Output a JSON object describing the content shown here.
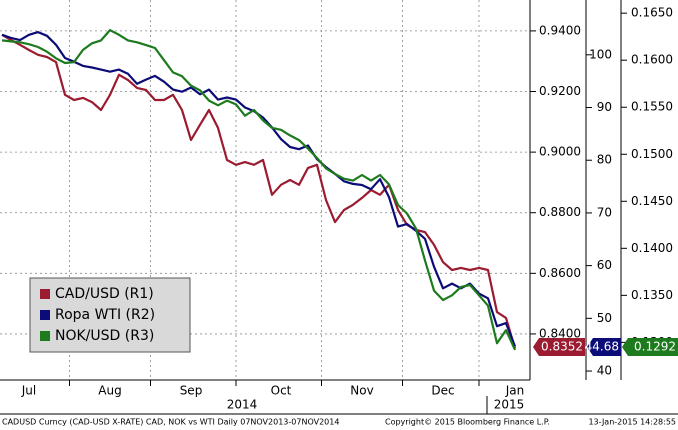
{
  "chart_data": {
    "type": "line",
    "categories": [
      null,
      null,
      null,
      "Jul",
      null,
      null,
      null,
      null,
      null,
      null,
      null,
      null,
      "Aug",
      null,
      null,
      null,
      null,
      null,
      null,
      null,
      null,
      "Sep",
      null,
      null,
      null,
      null,
      null,
      null,
      null,
      null,
      null,
      "Oct",
      null,
      null,
      null,
      null,
      null,
      null,
      null,
      null,
      "Nov",
      null,
      null,
      null,
      null,
      null,
      null,
      null,
      null,
      "Dec",
      null,
      null,
      null,
      null,
      null,
      null,
      null,
      "Jan"
    ],
    "years": [
      "2014",
      "2015"
    ],
    "series": [
      {
        "name": "CAD/USD (R1)",
        "color": "#9b1b30",
        "axis": "y",
        "values": [
          0.9387,
          0.937,
          0.9354,
          0.9337,
          0.9321,
          0.9314,
          0.9297,
          0.9189,
          0.9172,
          0.9179,
          0.9165,
          0.9139,
          0.9189,
          0.9255,
          0.9238,
          0.9212,
          0.9205,
          0.9172,
          0.9172,
          0.9189,
          0.9139,
          0.904,
          0.909,
          0.9139,
          0.908,
          0.8974,
          0.8958,
          0.8967,
          0.8958,
          0.8974,
          0.8859,
          0.8892,
          0.8908,
          0.8892,
          0.8948,
          0.8958,
          0.8842,
          0.8769,
          0.8809,
          0.8826,
          0.8849,
          0.8875,
          0.8859,
          0.8892,
          0.8809,
          0.876,
          0.8743,
          0.8736,
          0.8694,
          0.8637,
          0.8611,
          0.8618,
          0.8611,
          0.8618,
          0.8611,
          0.8472,
          0.8453,
          0.8352
        ]
      },
      {
        "name": "Ropa WTI (R2)",
        "color": "#0c0c78",
        "axis": "y2",
        "values": [
          103.8,
          103.2,
          102.8,
          103.8,
          104.3,
          103.6,
          101.9,
          99.4,
          98.7,
          97.9,
          97.6,
          97.2,
          96.8,
          97.2,
          96.4,
          94.5,
          95.3,
          96.0,
          94.9,
          93.4,
          93.0,
          93.8,
          92.5,
          93.4,
          91.5,
          91.9,
          91.5,
          90.0,
          89.3,
          88.1,
          86.2,
          84.0,
          82.5,
          82.1,
          82.8,
          80.2,
          78.7,
          77.4,
          76.0,
          75.5,
          75.3,
          74.5,
          76.4,
          73.0,
          67.4,
          67.9,
          66.6,
          65.1,
          59.8,
          55.7,
          56.6,
          55.7,
          56.6,
          54.7,
          53.8,
          48.5,
          49.1,
          44.68
        ]
      },
      {
        "name": "NOK/USD (R3)",
        "color": "#1d7a1d",
        "axis": "y3",
        "values": [
          0.1621,
          0.162,
          0.1619,
          0.1617,
          0.1614,
          0.1609,
          0.1602,
          0.1597,
          0.1598,
          0.1611,
          0.1618,
          0.1621,
          0.1632,
          0.1627,
          0.1621,
          0.1619,
          0.1616,
          0.1613,
          0.16,
          0.1587,
          0.1583,
          0.1573,
          0.1568,
          0.1557,
          0.1552,
          0.1557,
          0.1553,
          0.1541,
          0.1547,
          0.1536,
          0.1528,
          0.1526,
          0.152,
          0.1515,
          0.1506,
          0.1496,
          0.1485,
          0.1479,
          0.1474,
          0.1472,
          0.1478,
          0.1472,
          0.1478,
          0.1468,
          0.1446,
          0.1437,
          0.1421,
          0.1387,
          0.1355,
          0.1345,
          0.135,
          0.1359,
          0.1361,
          0.135,
          0.1339,
          0.1299,
          0.1313,
          0.1292
        ]
      }
    ],
    "ylim": [
      0.8248,
      0.9502
    ],
    "yticks": [
      {
        "value": 0.84,
        "label": "0.8400"
      },
      {
        "value": 0.86,
        "label": "0.8600"
      },
      {
        "value": 0.88,
        "label": "0.8800"
      },
      {
        "value": 0.9,
        "label": "0.9000"
      },
      {
        "value": 0.92,
        "label": "0.9200"
      },
      {
        "value": 0.94,
        "label": "0.9400"
      }
    ],
    "y2lim": [
      38.3,
      110.4
    ],
    "y2ticks": [
      40,
      50,
      60,
      70,
      80,
      90,
      100
    ],
    "y3lim": [
      0.126,
      0.1664
    ],
    "y3ticks": [
      {
        "value": 0.13,
        "label": "0.1300"
      },
      {
        "value": 0.135,
        "label": "0.1350"
      },
      {
        "value": 0.14,
        "label": "0.1400"
      },
      {
        "value": 0.145,
        "label": "0.1450"
      },
      {
        "value": 0.15,
        "label": "0.1500"
      },
      {
        "value": 0.155,
        "label": "0.1550"
      },
      {
        "value": 0.16,
        "label": "0.1600"
      },
      {
        "value": 0.165,
        "label": "0.1650"
      }
    ],
    "grid": true,
    "legend": "lower-left",
    "footer": [
      "CADUSD Curncy (CAD-USD X-RATE) CAD, NOK vs WTI  Daily 07NOV2013-07NOV2014",
      "Copyright© 2015 Bloomberg Finance L.P.",
      "13-Jan-2015 14:28:55"
    ]
  }
}
